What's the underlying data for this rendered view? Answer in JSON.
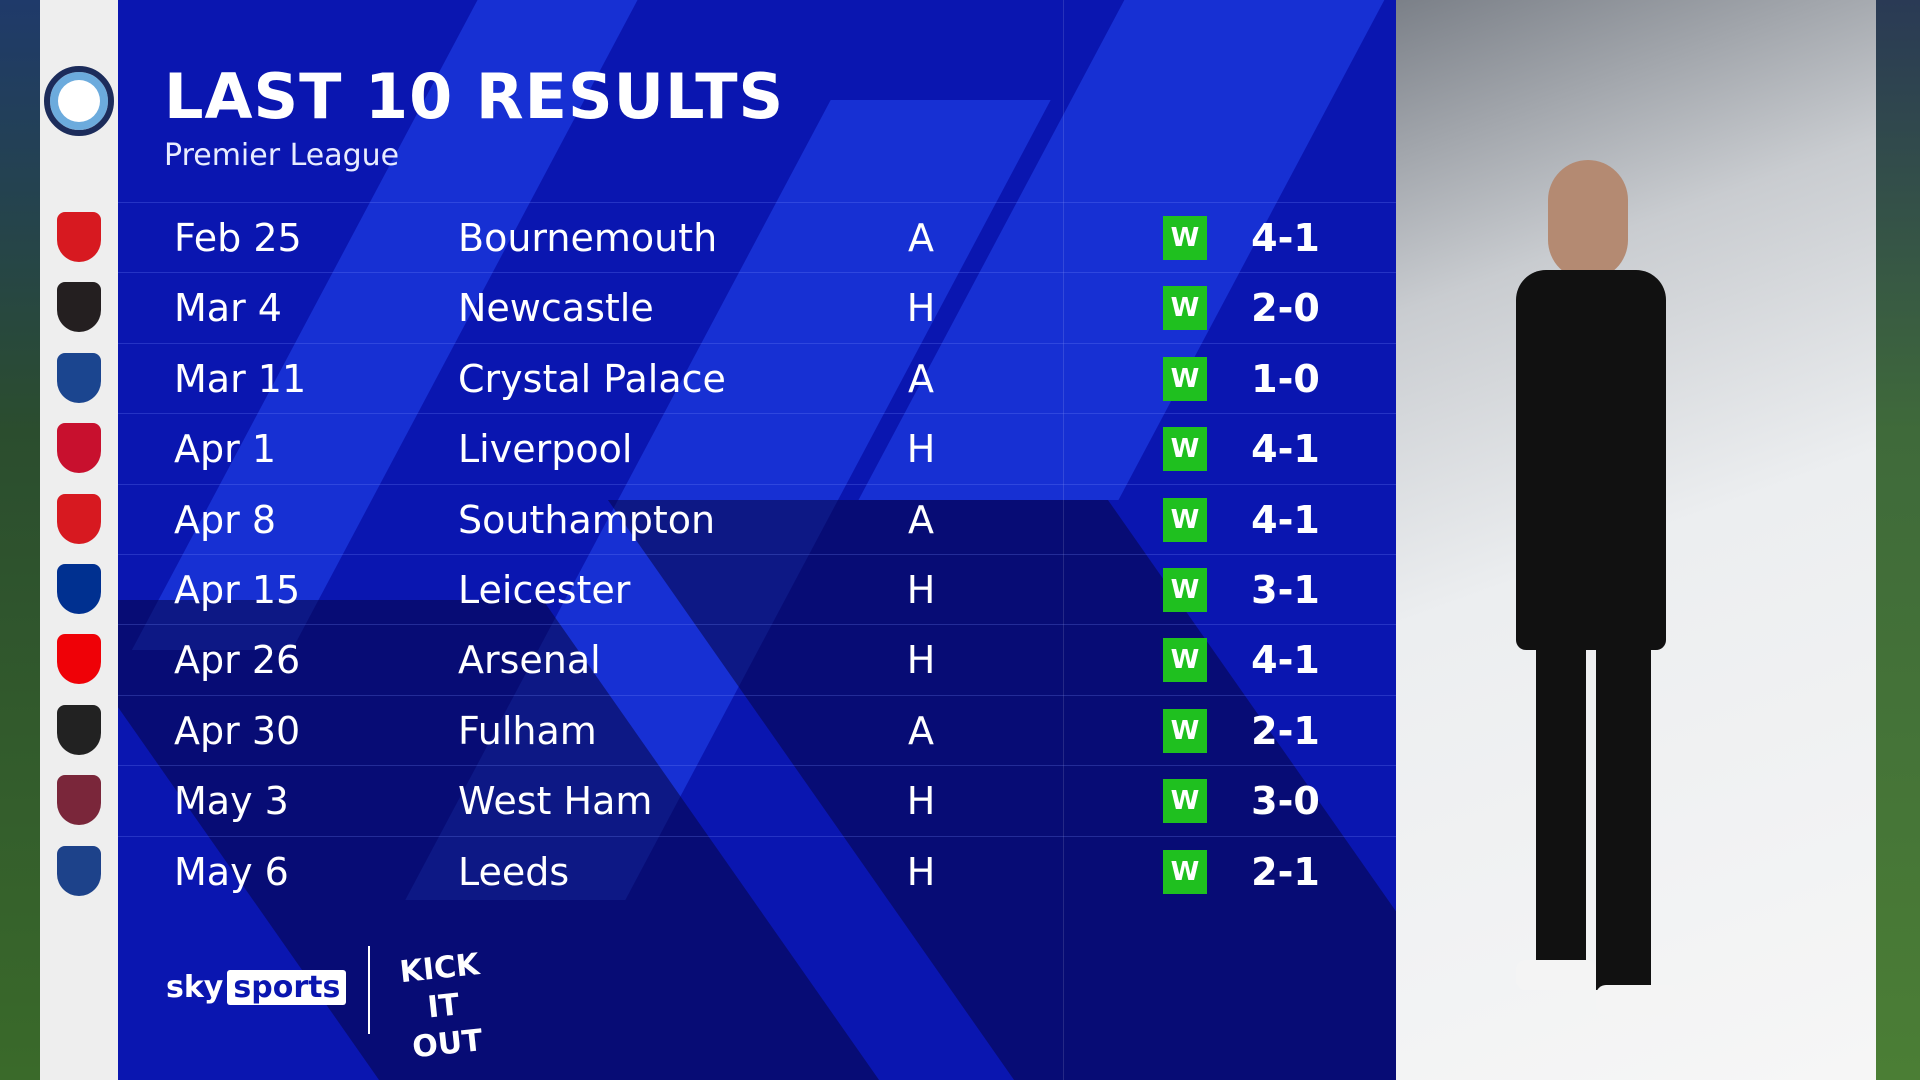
{
  "header": {
    "title": "LAST 10 RESULTS",
    "subtitle": "Premier League"
  },
  "results": [
    {
      "date": "Feb 25",
      "opponent": "Bournemouth",
      "venue": "A",
      "result": "W",
      "score": "4-1",
      "crest_color": "#d71920"
    },
    {
      "date": "Mar 4",
      "opponent": "Newcastle",
      "venue": "H",
      "result": "W",
      "score": "2-0",
      "crest_color": "#241f20"
    },
    {
      "date": "Mar 11",
      "opponent": "Crystal Palace",
      "venue": "A",
      "result": "W",
      "score": "1-0",
      "crest_color": "#1b458f"
    },
    {
      "date": "Apr 1",
      "opponent": "Liverpool",
      "venue": "H",
      "result": "W",
      "score": "4-1",
      "crest_color": "#c8102e"
    },
    {
      "date": "Apr 8",
      "opponent": "Southampton",
      "venue": "A",
      "result": "W",
      "score": "4-1",
      "crest_color": "#d71920"
    },
    {
      "date": "Apr 15",
      "opponent": "Leicester",
      "venue": "H",
      "result": "W",
      "score": "3-1",
      "crest_color": "#003090"
    },
    {
      "date": "Apr 26",
      "opponent": "Arsenal",
      "venue": "H",
      "result": "W",
      "score": "4-1",
      "crest_color": "#ef0107"
    },
    {
      "date": "Apr 30",
      "opponent": "Fulham",
      "venue": "A",
      "result": "W",
      "score": "2-1",
      "crest_color": "#222222"
    },
    {
      "date": "May 3",
      "opponent": "West Ham",
      "venue": "H",
      "result": "W",
      "score": "3-0",
      "crest_color": "#7a263a"
    },
    {
      "date": "May 6",
      "opponent": "Leeds",
      "venue": "H",
      "result": "W",
      "score": "2-1",
      "crest_color": "#1d428a"
    }
  ],
  "footer": {
    "brand_sky": "sky",
    "brand_sports": "sports",
    "campaign": "KICK IT OUT"
  },
  "colors": {
    "panel": "#0a16b0",
    "win": "#1fc01f"
  }
}
